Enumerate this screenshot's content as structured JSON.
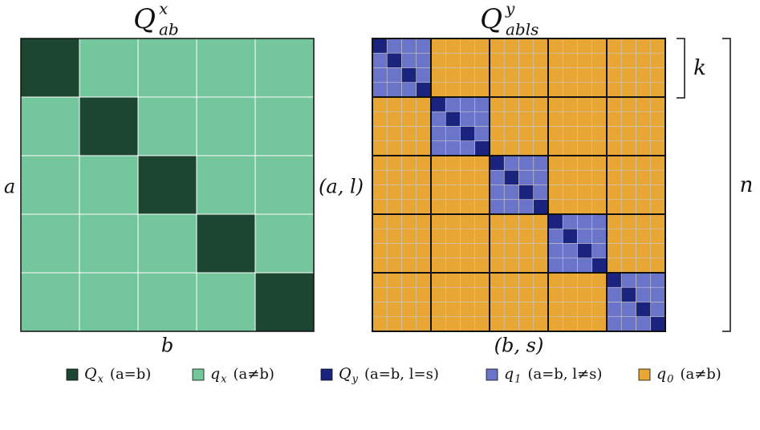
{
  "left": {
    "title": {
      "main": "Q",
      "sup": "x",
      "sub": "ab"
    },
    "row_label": "a",
    "col_label": "b"
  },
  "right": {
    "title": {
      "main": "Q",
      "sup": "y",
      "sub": "abls"
    },
    "row_label": "(a, l)",
    "col_label": "(b, s)",
    "block_label": "k",
    "size_label": "n"
  },
  "legend": [
    {
      "main": "Q",
      "sub": "x",
      "text": "(a=b)",
      "color": "#1c4532"
    },
    {
      "main": "q",
      "sub": "x",
      "text": "(a≠b)",
      "color": "#74c69d"
    },
    {
      "main": "Q",
      "sub": "y",
      "text": "(a=b, l=s)",
      "color": "#1a237e"
    },
    {
      "main": "q",
      "sub": "1",
      "text": "(a=b, l≠s)",
      "color": "#6a75c9"
    },
    {
      "main": "q",
      "sub": "0",
      "text": "(a≠b)",
      "color": "#e8a735"
    }
  ]
}
